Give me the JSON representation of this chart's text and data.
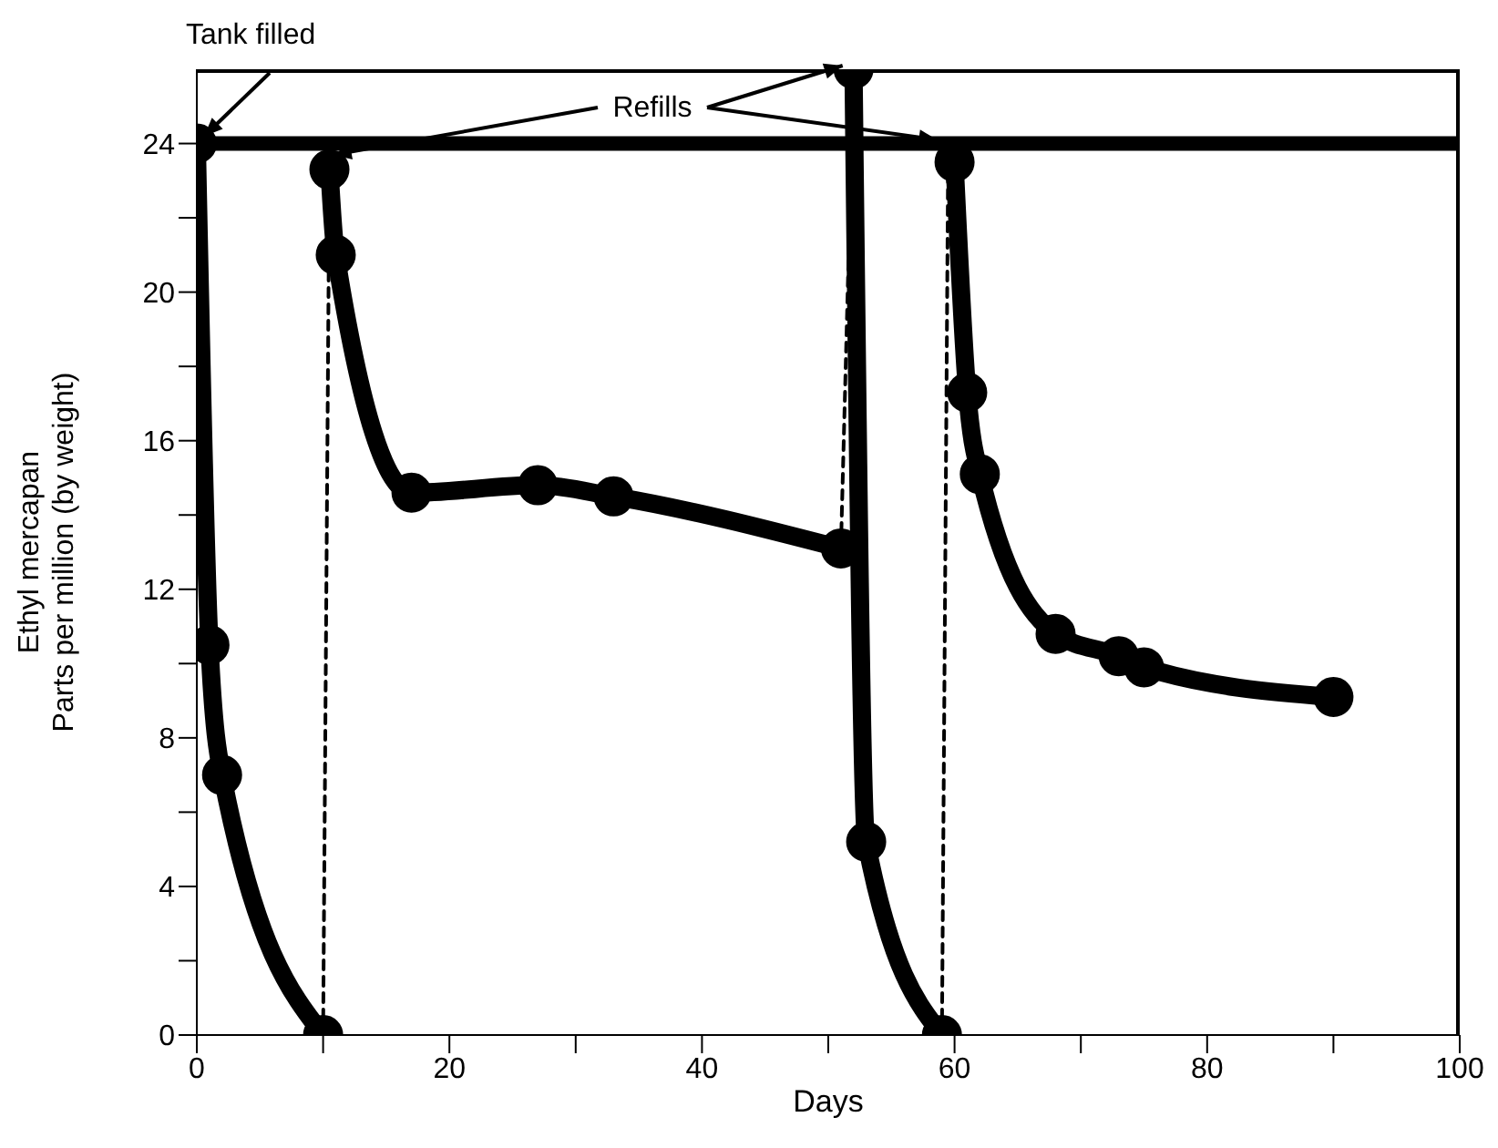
{
  "chart_data": {
    "type": "line",
    "xlabel": "Days",
    "ylabel": "Ethyl mercapan\nParts per million (by weight)",
    "xlim": [
      0,
      100
    ],
    "xticks": [
      0,
      {
        "value": 10,
        "label": null
      },
      20,
      {
        "value": 30,
        "label": null
      },
      40,
      {
        "value": 50,
        "label": null
      },
      60,
      {
        "value": 70,
        "label": null
      },
      80,
      {
        "value": 90,
        "label": null
      },
      100
    ],
    "ylim": [
      0,
      26
    ],
    "yticks": [
      0,
      {
        "value": 2,
        "label": null
      },
      4,
      {
        "value": 6,
        "label": null
      },
      8,
      {
        "value": 10,
        "label": null
      },
      12,
      {
        "value": 14,
        "label": null
      },
      16,
      {
        "value": 18,
        "label": null
      },
      20,
      {
        "value": 22,
        "label": null
      },
      24
    ],
    "grid": false,
    "ref_lines": [
      {
        "axis": "y",
        "value": 24,
        "color": "#000000"
      }
    ],
    "annotations": [
      {
        "text": "Tank filled",
        "x": 0,
        "y": 24
      },
      {
        "text": "Refills",
        "x": 10.5,
        "y": 23.3
      }
    ],
    "series": [
      {
        "color": "#000000",
        "marker": "circle",
        "line_style": "solid",
        "x": [
          0,
          1,
          2,
          10
        ],
        "values": [
          24,
          10.5,
          7,
          0
        ]
      },
      {
        "color": "#000000",
        "marker": "circle",
        "line_style": "solid",
        "x": [
          10.5,
          11,
          17,
          27,
          33,
          51
        ],
        "values": [
          23.3,
          21,
          14.6,
          14.8,
          14.5,
          13.1
        ]
      },
      {
        "color": "#000000",
        "marker": "circle",
        "line_style": "solid",
        "x": [
          52,
          53,
          59
        ],
        "values": [
          26,
          5.2,
          0
        ]
      },
      {
        "color": "#000000",
        "marker": "circle",
        "line_style": "solid",
        "x": [
          60,
          61,
          62,
          68,
          73,
          75,
          90
        ],
        "values": [
          23.5,
          17.3,
          15.1,
          10.8,
          10.2,
          9.9,
          9.1
        ]
      },
      {
        "color": "#000000",
        "marker": "none",
        "line_style": "dashed",
        "x": [
          10,
          10.5
        ],
        "values": [
          0,
          23.3
        ]
      },
      {
        "color": "#000000",
        "marker": "none",
        "line_style": "dashed",
        "x": [
          51,
          52
        ],
        "values": [
          13.1,
          26
        ]
      },
      {
        "color": "#000000",
        "marker": "none",
        "line_style": "dashed",
        "x": [
          59,
          59.5
        ],
        "values": [
          0,
          24
        ]
      }
    ]
  }
}
